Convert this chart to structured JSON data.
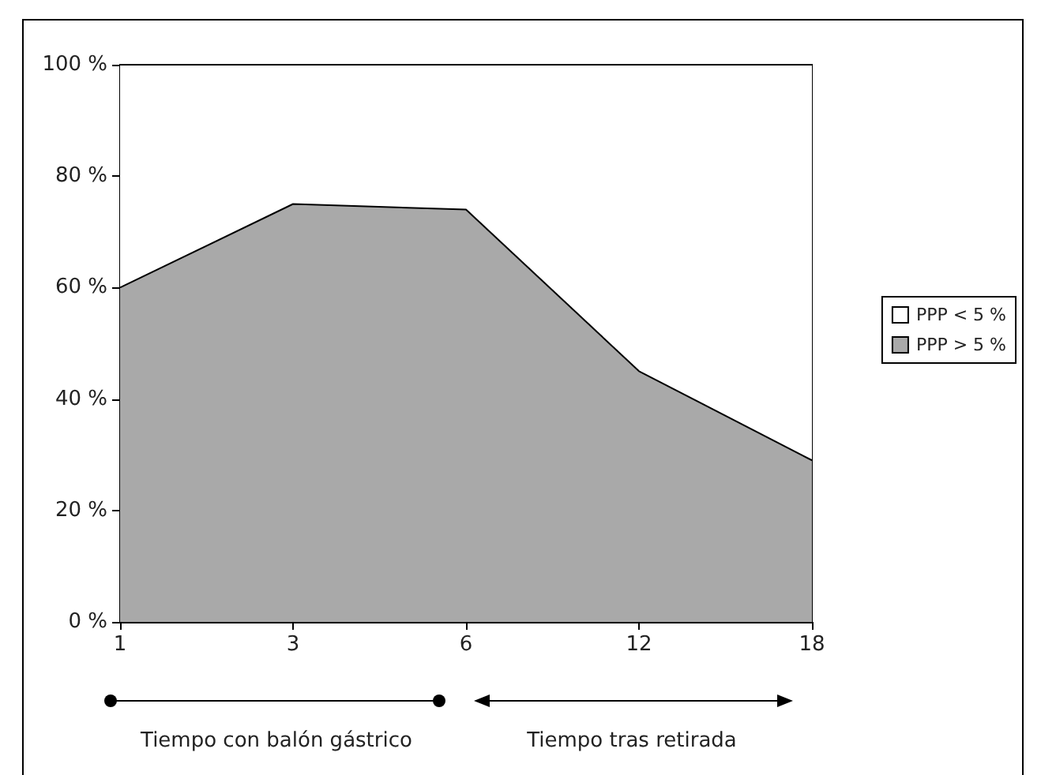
{
  "chart_data": {
    "type": "area",
    "stacked": true,
    "categories": [
      "1",
      "3",
      "6",
      "12",
      "18"
    ],
    "series": [
      {
        "name": "PPP > 5 %",
        "color": "#a9a9a9",
        "values": [
          60,
          75,
          74,
          45,
          29
        ]
      },
      {
        "name": "PPP < 5 %",
        "color": "#ffffff",
        "values": [
          40,
          25,
          26,
          55,
          71
        ]
      }
    ],
    "ylim": [
      0,
      100
    ],
    "yticks": [
      {
        "value": 0,
        "label": "0 %"
      },
      {
        "value": 20,
        "label": "20 %"
      },
      {
        "value": 40,
        "label": "40 %"
      },
      {
        "value": 60,
        "label": "60 %"
      },
      {
        "value": 80,
        "label": "80 %"
      },
      {
        "value": 100,
        "label": "100 %"
      }
    ],
    "legend": "right",
    "annotations": [
      "Tiempo con balón gástrico",
      "Tiempo tras retirada"
    ]
  }
}
